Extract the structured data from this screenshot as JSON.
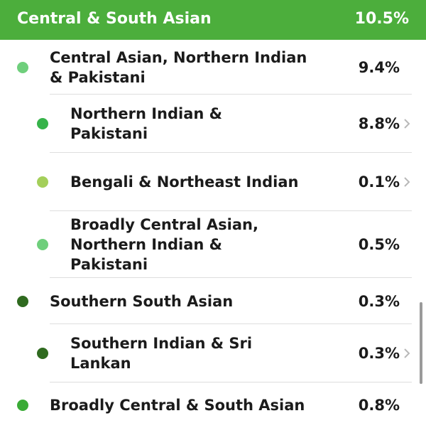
{
  "header": {
    "title": "Central & South Asian",
    "value": "10.5%",
    "color": "#4cae3c"
  },
  "rows": [
    {
      "label": "Central Asian, Northern Indian & Pakistani",
      "value": "9.4%",
      "color": "#6fcf7c",
      "children": [
        {
          "label": "Northern Indian & Pakistani",
          "value": "8.8%",
          "color": "#36b34a",
          "has_detail": true
        },
        {
          "label": "Bengali & Northeast Indian",
          "value": "0.1%",
          "color": "#a4cf5a",
          "has_detail": true
        },
        {
          "label": "Broadly Central Asian, Northern Indian & Pakistani",
          "value": "0.5%",
          "color": "#6fcf7c",
          "has_detail": false
        }
      ]
    },
    {
      "label": "Southern South Asian",
      "value": "0.3%",
      "color": "#2f6a1f",
      "children": [
        {
          "label": "Southern Indian & Sri Lankan",
          "value": "0.3%",
          "color": "#2f6a1f",
          "has_detail": true
        }
      ]
    },
    {
      "label": "Broadly Central & South Asian",
      "value": "0.8%",
      "color": "#3aab36",
      "children": []
    }
  ]
}
